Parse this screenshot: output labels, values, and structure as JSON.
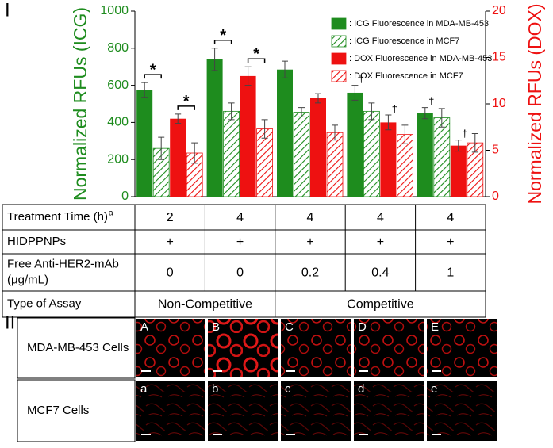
{
  "chart_data": {
    "type": "bar",
    "panel_label": "I",
    "ylabel": "Normalized RFUs (ICG)",
    "y2label": "Normalized RFUs (DOX)",
    "ylim": [
      0,
      1000
    ],
    "yticks": [
      0,
      200,
      400,
      600,
      800,
      1000
    ],
    "y2lim": [
      0,
      20
    ],
    "y2ticks": [
      0,
      5,
      10,
      15,
      20
    ],
    "series": [
      {
        "name": ": ICG Fluorescence in MDA-MB-453",
        "color": "#1e8c1e",
        "hatch": false,
        "values": [
          575,
          740,
          685,
          560,
          450
        ],
        "errors": [
          40,
          60,
          45,
          40,
          30
        ]
      },
      {
        "name": ": ICG Fluorescence  in MCF7",
        "color": "#1e8c1e",
        "hatch": true,
        "values": [
          260,
          460,
          455,
          460,
          425
        ],
        "errors": [
          60,
          45,
          25,
          45,
          50
        ]
      },
      {
        "name": ": DOX Fluorescence in MDA-MB-453",
        "color": "#ee1111",
        "hatch": false,
        "axis": "y2",
        "values": [
          8.4,
          13,
          10.6,
          8.0,
          5.5
        ],
        "errors": [
          0.5,
          1.0,
          0.5,
          0.8,
          0.6
        ]
      },
      {
        "name": ": DOX Fluorescence in MCF7",
        "color": "#ee1111",
        "hatch": true,
        "axis": "y2",
        "values": [
          4.7,
          7.3,
          6.9,
          6.7,
          5.8
        ],
        "errors": [
          1.1,
          1.0,
          0.8,
          1.0,
          1.0
        ]
      }
    ],
    "annotations": [
      "*",
      "*",
      "*",
      "*",
      "†",
      "†",
      "†",
      "†"
    ]
  },
  "table": {
    "rows": [
      {
        "label": [
          "Treatment Time (h)"
        ],
        "sup": "a",
        "cells": [
          {
            "text": "2",
            "span": 1
          },
          {
            "text": "4",
            "span": 1
          },
          {
            "text": "4",
            "span": 1
          },
          {
            "text": "4",
            "span": 1
          },
          {
            "text": "4",
            "span": 1
          }
        ]
      },
      {
        "label": [
          "HIDPPNPs"
        ],
        "cells": [
          {
            "text": "+",
            "span": 1
          },
          {
            "text": "+",
            "span": 1
          },
          {
            "text": "+",
            "span": 1
          },
          {
            "text": "+",
            "span": 1
          },
          {
            "text": "+",
            "span": 1
          }
        ]
      },
      {
        "label": [
          "Free Anti-HER2-mAb",
          "(μg/mL)"
        ],
        "cells": [
          {
            "text": "0",
            "span": 1
          },
          {
            "text": "0",
            "span": 1
          },
          {
            "text": "0.2",
            "span": 1
          },
          {
            "text": "0.4",
            "span": 1
          },
          {
            "text": "1",
            "span": 1
          }
        ]
      },
      {
        "label": [
          "Type of Assay"
        ],
        "cells": [
          {
            "text": "Non-Competitive",
            "span": 2
          },
          {
            "text": "Competitive",
            "span": 3
          }
        ]
      }
    ]
  },
  "images": {
    "panel_label": "II",
    "rows": [
      {
        "label": "MDA-MB-453 Cells",
        "panels": [
          "A",
          "B",
          "C",
          "D",
          "E"
        ]
      },
      {
        "label": "MCF7 Cells",
        "panels": [
          "a",
          "b",
          "c",
          "d",
          "e"
        ]
      }
    ]
  }
}
